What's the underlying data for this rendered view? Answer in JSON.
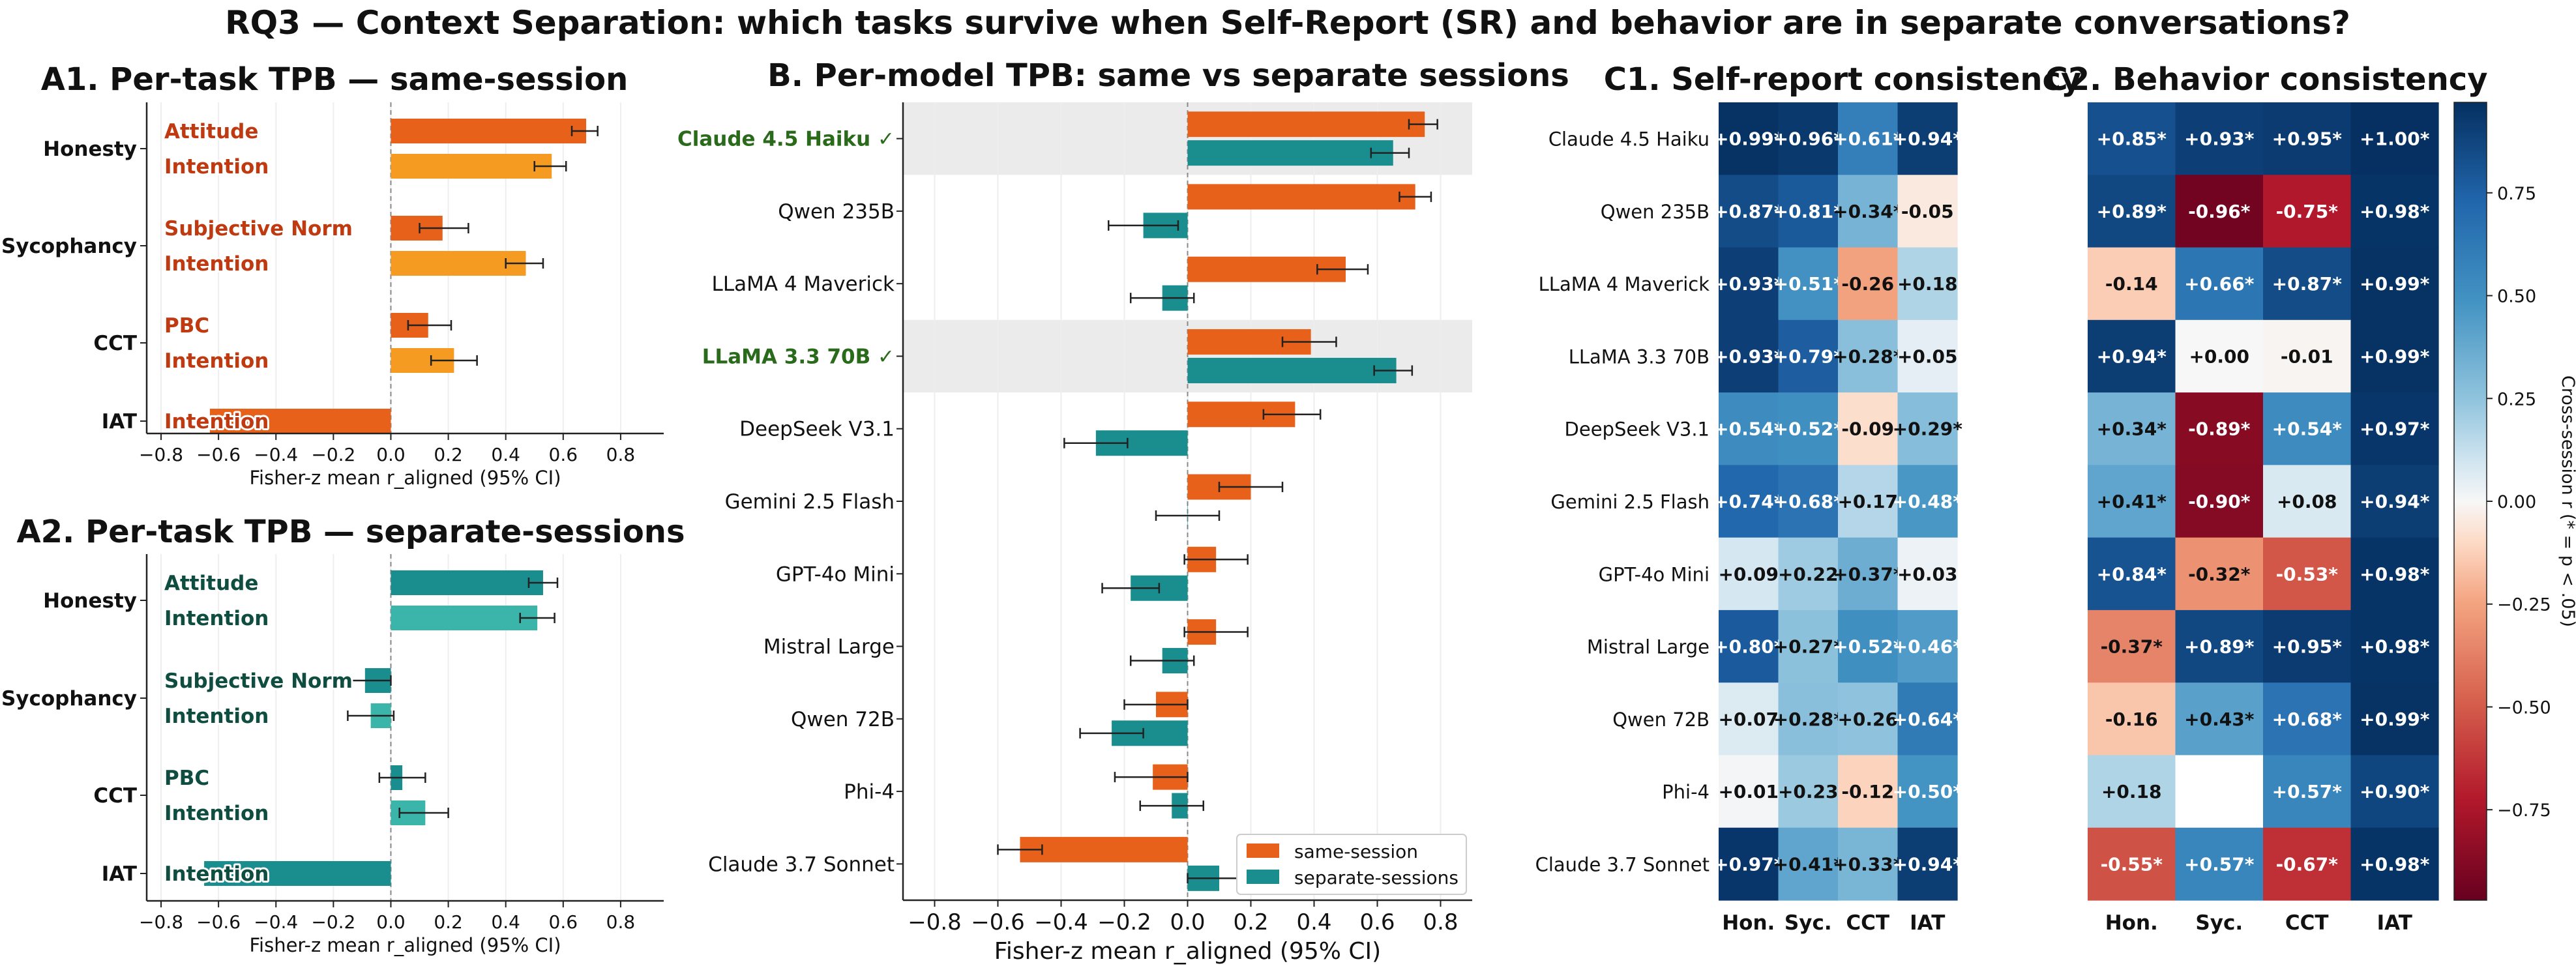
{
  "figure": {
    "suptitle": "RQ3 — Context Separation: which tasks survive when Self-Report (SR) and behavior are in separate conversations?"
  },
  "colors": {
    "same_session": "#E8611A",
    "separate_sessions": "#1A8D8F",
    "same_intention": "#F59B21",
    "sep_intention": "#3BB5A9",
    "label_same": "#BF3A10",
    "label_sep": "#0E4D40",
    "highlight_text": "#2A6B1B",
    "highlight_band": "#EBEBEB"
  },
  "chart_data": [
    {
      "id": "A1",
      "type": "bar",
      "orientation": "horizontal",
      "title": "A1. Per-task TPB — same-session",
      "xlabel": "Fisher-z mean r_aligned (95% CI)",
      "xlim": [
        -0.85,
        0.95
      ],
      "xticks": [
        "−0.8",
        "−0.6",
        "−0.4",
        "−0.2",
        "0.0",
        "0.2",
        "0.4",
        "0.6",
        "0.8"
      ],
      "tasks": [
        "Honesty",
        "Sycophancy",
        "CCT",
        "IAT"
      ],
      "bars": [
        {
          "task": "Honesty",
          "label": "Attitude",
          "value": 0.68,
          "ci": [
            0.63,
            0.72
          ],
          "color_key": "same_session"
        },
        {
          "task": "Honesty",
          "label": "Intention",
          "value": 0.56,
          "ci": [
            0.5,
            0.61
          ],
          "color_key": "same_intention"
        },
        {
          "task": "Sycophancy",
          "label": "Subjective Norm",
          "value": 0.18,
          "ci": [
            0.1,
            0.27
          ],
          "color_key": "same_session"
        },
        {
          "task": "Sycophancy",
          "label": "Intention",
          "value": 0.47,
          "ci": [
            0.4,
            0.53
          ],
          "color_key": "same_intention"
        },
        {
          "task": "CCT",
          "label": "PBC",
          "value": 0.13,
          "ci": [
            0.06,
            0.21
          ],
          "color_key": "same_session"
        },
        {
          "task": "CCT",
          "label": "Intention",
          "value": 0.22,
          "ci": [
            0.14,
            0.3
          ],
          "color_key": "same_intention"
        },
        {
          "task": "IAT",
          "label": "Intention",
          "value": -0.63,
          "ci": null,
          "color_key": "same_session"
        }
      ]
    },
    {
      "id": "A2",
      "type": "bar",
      "orientation": "horizontal",
      "title": "A2. Per-task TPB — separate-sessions",
      "xlabel": "Fisher-z mean r_aligned (95% CI)",
      "xlim": [
        -0.85,
        0.95
      ],
      "xticks": [
        "−0.8",
        "−0.6",
        "−0.4",
        "−0.2",
        "0.0",
        "0.2",
        "0.4",
        "0.6",
        "0.8"
      ],
      "tasks": [
        "Honesty",
        "Sycophancy",
        "CCT",
        "IAT"
      ],
      "bars": [
        {
          "task": "Honesty",
          "label": "Attitude",
          "value": 0.53,
          "ci": [
            0.48,
            0.58
          ],
          "color_key": "separate_sessions"
        },
        {
          "task": "Honesty",
          "label": "Intention",
          "value": 0.51,
          "ci": [
            0.45,
            0.57
          ],
          "color_key": "sep_intention"
        },
        {
          "task": "Sycophancy",
          "label": "Subjective Norm",
          "value": -0.09,
          "ci": [
            -0.17,
            0.0
          ],
          "color_key": "separate_sessions"
        },
        {
          "task": "Sycophancy",
          "label": "Intention",
          "value": -0.07,
          "ci": [
            -0.15,
            0.01
          ],
          "color_key": "sep_intention"
        },
        {
          "task": "CCT",
          "label": "PBC",
          "value": 0.04,
          "ci": [
            -0.04,
            0.12
          ],
          "color_key": "separate_sessions"
        },
        {
          "task": "CCT",
          "label": "Intention",
          "value": 0.12,
          "ci": [
            0.03,
            0.2
          ],
          "color_key": "sep_intention"
        },
        {
          "task": "IAT",
          "label": "Intention",
          "value": -0.65,
          "ci": null,
          "color_key": "separate_sessions"
        }
      ]
    },
    {
      "id": "B",
      "type": "bar",
      "orientation": "horizontal",
      "title": "B. Per-model TPB: same vs separate sessions",
      "xlabel": "Fisher-z mean r_aligned (95% CI)",
      "xlim": [
        -0.9,
        0.9
      ],
      "xticks": [
        "−0.8",
        "−0.6",
        "−0.4",
        "−0.2",
        "0.0",
        "0.2",
        "0.4",
        "0.6",
        "0.8"
      ],
      "legend": {
        "position": "lower-right",
        "entries": [
          "same-session",
          "separate-sessions"
        ]
      },
      "models": [
        {
          "name": "Claude 4.5 Haiku ✓",
          "highlight": true,
          "same": 0.75,
          "same_ci": [
            0.7,
            0.79
          ],
          "sep": 0.65,
          "sep_ci": [
            0.58,
            0.7
          ]
        },
        {
          "name": "Qwen 235B",
          "highlight": false,
          "same": 0.72,
          "same_ci": [
            0.67,
            0.77
          ],
          "sep": -0.14,
          "sep_ci": [
            -0.25,
            -0.03
          ]
        },
        {
          "name": "LLaMA 4 Maverick",
          "highlight": false,
          "same": 0.5,
          "same_ci": [
            0.41,
            0.57
          ],
          "sep": -0.08,
          "sep_ci": [
            -0.18,
            0.02
          ]
        },
        {
          "name": "LLaMA 3.3 70B ✓",
          "highlight": true,
          "same": 0.39,
          "same_ci": [
            0.3,
            0.47
          ],
          "sep": 0.66,
          "sep_ci": [
            0.59,
            0.71
          ]
        },
        {
          "name": "DeepSeek V3.1",
          "highlight": false,
          "same": 0.34,
          "same_ci": [
            0.24,
            0.42
          ],
          "sep": -0.29,
          "sep_ci": [
            -0.39,
            -0.19
          ]
        },
        {
          "name": "Gemini 2.5 Flash",
          "highlight": false,
          "same": 0.2,
          "same_ci": [
            0.1,
            0.3
          ],
          "sep": 0.0,
          "sep_ci": [
            -0.1,
            0.1
          ]
        },
        {
          "name": "GPT-4o Mini",
          "highlight": false,
          "same": 0.09,
          "same_ci": [
            -0.01,
            0.19
          ],
          "sep": -0.18,
          "sep_ci": [
            -0.27,
            -0.09
          ]
        },
        {
          "name": "Mistral Large",
          "highlight": false,
          "same": 0.09,
          "same_ci": [
            -0.01,
            0.19
          ],
          "sep": -0.08,
          "sep_ci": [
            -0.18,
            0.02
          ]
        },
        {
          "name": "Qwen 72B",
          "highlight": false,
          "same": -0.1,
          "same_ci": [
            -0.2,
            0.0
          ],
          "sep": -0.24,
          "sep_ci": [
            -0.34,
            -0.14
          ]
        },
        {
          "name": "Phi-4",
          "highlight": false,
          "same": -0.11,
          "same_ci": [
            -0.23,
            0.0
          ],
          "sep": -0.05,
          "sep_ci": [
            -0.15,
            0.05
          ]
        },
        {
          "name": "Claude 3.7 Sonnet",
          "highlight": false,
          "same": -0.53,
          "same_ci": [
            -0.6,
            -0.46
          ],
          "sep": 0.1,
          "sep_ci": [
            0.0,
            0.2
          ]
        }
      ]
    },
    {
      "id": "C1",
      "type": "heatmap",
      "title": "C1. Self-report consistency",
      "columns": [
        "Hon.",
        "Syc.",
        "CCT",
        "IAT"
      ],
      "rows": [
        "Claude 4.5 Haiku",
        "Qwen 235B",
        "LLaMA 4 Maverick",
        "LLaMA 3.3 70B",
        "DeepSeek V3.1",
        "Gemini 2.5 Flash",
        "GPT-4o Mini",
        "Mistral Large",
        "Qwen 72B",
        "Phi-4",
        "Claude 3.7 Sonnet"
      ],
      "values": [
        [
          0.99,
          0.96,
          0.61,
          0.94
        ],
        [
          0.87,
          0.81,
          0.34,
          -0.05
        ],
        [
          0.93,
          0.51,
          -0.26,
          0.18
        ],
        [
          0.93,
          0.79,
          0.28,
          0.05
        ],
        [
          0.54,
          0.52,
          -0.09,
          0.29
        ],
        [
          0.74,
          0.68,
          0.17,
          0.48
        ],
        [
          0.09,
          0.22,
          0.37,
          0.03
        ],
        [
          0.8,
          0.27,
          0.52,
          0.46
        ],
        [
          0.07,
          0.28,
          0.26,
          0.64
        ],
        [
          0.01,
          0.23,
          -0.12,
          0.5
        ],
        [
          0.97,
          0.41,
          0.33,
          0.94
        ]
      ],
      "labels": [
        [
          "+0.99*",
          "+0.96*",
          "+0.61*",
          "+0.94*"
        ],
        [
          "+0.87*",
          "+0.81*",
          "+0.34*",
          "-0.05"
        ],
        [
          "+0.93*",
          "+0.51*",
          "-0.26",
          "+0.18"
        ],
        [
          "+0.93*",
          "+0.79*",
          "+0.28*",
          "+0.05"
        ],
        [
          "+0.54*",
          "+0.52*",
          "-0.09",
          "+0.29*"
        ],
        [
          "+0.74*",
          "+0.68*",
          "+0.17",
          "+0.48*"
        ],
        [
          "+0.09",
          "+0.22",
          "+0.37*",
          "+0.03"
        ],
        [
          "+0.80*",
          "+0.27*",
          "+0.52*",
          "+0.46*"
        ],
        [
          "+0.07",
          "+0.28*",
          "+0.26",
          "+0.64*"
        ],
        [
          "+0.01",
          "+0.23",
          "-0.12",
          "+0.50*"
        ],
        [
          "+0.97*",
          "+0.41*",
          "+0.33*",
          "+0.94*"
        ]
      ]
    },
    {
      "id": "C2",
      "type": "heatmap",
      "title": "C2. Behavior consistency",
      "columns": [
        "Hon.",
        "Syc.",
        "CCT",
        "IAT"
      ],
      "rows": [
        "Claude 4.5 Haiku",
        "Qwen 235B",
        "LLaMA 4 Maverick",
        "LLaMA 3.3 70B",
        "DeepSeek V3.1",
        "Gemini 2.5 Flash",
        "GPT-4o Mini",
        "Mistral Large",
        "Qwen 72B",
        "Phi-4",
        "Claude 3.7 Sonnet"
      ],
      "values": [
        [
          0.85,
          0.93,
          0.95,
          1.0
        ],
        [
          0.89,
          -0.96,
          -0.75,
          0.98
        ],
        [
          -0.14,
          0.66,
          0.87,
          0.99
        ],
        [
          0.94,
          0.0,
          -0.01,
          0.99
        ],
        [
          0.34,
          -0.89,
          0.54,
          0.97
        ],
        [
          0.41,
          -0.9,
          0.08,
          0.94
        ],
        [
          0.84,
          -0.32,
          -0.53,
          0.98
        ],
        [
          -0.37,
          0.89,
          0.95,
          0.98
        ],
        [
          -0.16,
          0.43,
          0.68,
          0.99
        ],
        [
          0.18,
          null,
          0.57,
          0.9
        ],
        [
          -0.55,
          0.57,
          -0.67,
          0.98
        ]
      ],
      "labels": [
        [
          "+0.85*",
          "+0.93*",
          "+0.95*",
          "+1.00*"
        ],
        [
          "+0.89*",
          "-0.96*",
          "-0.75*",
          "+0.98*"
        ],
        [
          "-0.14",
          "+0.66*",
          "+0.87*",
          "+0.99*"
        ],
        [
          "+0.94*",
          "+0.00",
          "-0.01",
          "+0.99*"
        ],
        [
          "+0.34*",
          "-0.89*",
          "+0.54*",
          "+0.97*"
        ],
        [
          "+0.41*",
          "-0.90*",
          "+0.08",
          "+0.94*"
        ],
        [
          "+0.84*",
          "-0.32*",
          "-0.53*",
          "+0.98*"
        ],
        [
          "-0.37*",
          "+0.89*",
          "+0.95*",
          "+0.98*"
        ],
        [
          "-0.16",
          "+0.43*",
          "+0.68*",
          "+0.99*"
        ],
        [
          "+0.18",
          "",
          "+0.57*",
          "+0.90*"
        ],
        [
          "-0.55*",
          "+0.57*",
          "-0.67*",
          "+0.98*"
        ]
      ],
      "colorbar": {
        "label": "Cross-session r  (* = p < .05)",
        "range": [
          -0.97,
          0.97
        ],
        "ticks": [
          "0.75",
          "0.50",
          "0.25",
          "0.00",
          "−0.25",
          "−0.50",
          "−0.75"
        ],
        "tick_values": [
          0.75,
          0.5,
          0.25,
          0,
          -0.25,
          -0.5,
          -0.75
        ]
      }
    }
  ]
}
